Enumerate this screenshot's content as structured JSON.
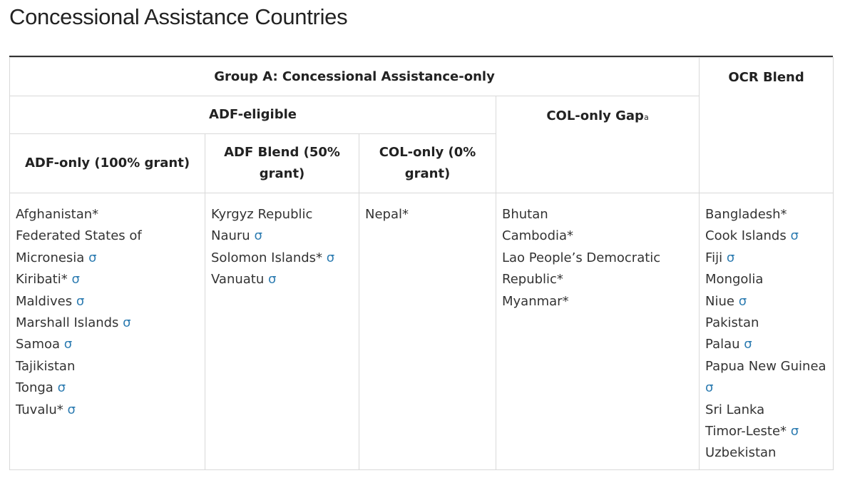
{
  "title": "Concessional Assistance Countries",
  "header": {
    "group_a": "Group A: Concessional Assistance-only",
    "ocr_blend": "OCR Blend",
    "adf_eligible": "ADF-eligible",
    "col_only_gap": "COL-only Gap",
    "col_only_gap_note": "a",
    "adf_only": "ADF-only (100% grant)",
    "adf_blend": "ADF Blend (50% grant)",
    "col_only": "COL-only (0% grant)"
  },
  "sigma_symbol": "σ",
  "sigma_color": "#2a7ab0",
  "columns": {
    "adf_only": [
      {
        "name": "Afghanistan*",
        "sigma": false
      },
      {
        "name": "Federated States of Micronesia",
        "sigma": true
      },
      {
        "name": "Kiribati*",
        "sigma": true
      },
      {
        "name": "Maldives",
        "sigma": true
      },
      {
        "name": "Marshall Islands",
        "sigma": true
      },
      {
        "name": "Samoa",
        "sigma": true
      },
      {
        "name": "Tajikistan",
        "sigma": false
      },
      {
        "name": "Tonga",
        "sigma": true
      },
      {
        "name": "Tuvalu*",
        "sigma": true
      }
    ],
    "adf_blend": [
      {
        "name": "Kyrgyz Republic",
        "sigma": false
      },
      {
        "name": "Nauru",
        "sigma": true
      },
      {
        "name": "Solomon Islands*",
        "sigma": true
      },
      {
        "name": "Vanuatu",
        "sigma": true
      }
    ],
    "col_only": [
      {
        "name": "Nepal*",
        "sigma": false
      }
    ],
    "col_only_gap": [
      {
        "name": "Bhutan",
        "sigma": false
      },
      {
        "name": "Cambodia*",
        "sigma": false
      },
      {
        "name": "Lao People’s Democratic Republic*",
        "sigma": false
      },
      {
        "name": "Myanmar*",
        "sigma": false
      }
    ],
    "ocr_blend": [
      {
        "name": "Bangladesh*",
        "sigma": false
      },
      {
        "name": "Cook Islands",
        "sigma": true
      },
      {
        "name": "Fiji",
        "sigma": true
      },
      {
        "name": "Mongolia",
        "sigma": false
      },
      {
        "name": "Niue",
        "sigma": true
      },
      {
        "name": "Pakistan",
        "sigma": false
      },
      {
        "name": "Palau",
        "sigma": true
      },
      {
        "name": "Papua New Guinea",
        "sigma": true
      },
      {
        "name": "Sri Lanka",
        "sigma": false
      },
      {
        "name": "Timor-Leste*",
        "sigma": true
      },
      {
        "name": "Uzbekistan",
        "sigma": false
      }
    ]
  }
}
